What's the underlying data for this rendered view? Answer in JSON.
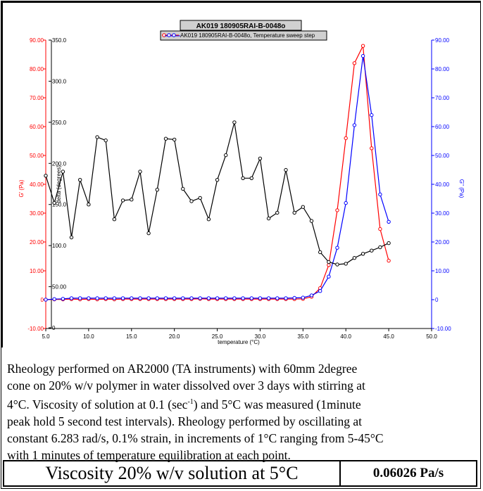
{
  "chart_data": {
    "type": "line",
    "title": "AK019 180905RAI-B-0048o",
    "legend_label": "AK019 180905RAI-B-0048o, Temperature sweep step",
    "legend_position": "top-center",
    "xlabel": "temperature (°C)",
    "y_left_label": "G' (Pa)",
    "y_right_label": "G'' (Pa)",
    "y_delta_label": "delta (degrees)",
    "xlim": [
      5.0,
      50.0
    ],
    "ylim": [
      -10.0,
      90.0
    ],
    "delta_lim": [
      0,
      350.0
    ],
    "x_ticks": [
      "5.0",
      "10.0",
      "15.0",
      "20.0",
      "25.0",
      "30.0",
      "35.0",
      "40.0",
      "45.0",
      "50.0"
    ],
    "y_ticks": [
      "-10.00",
      "0",
      "10.00",
      "20.00",
      "30.00",
      "40.00",
      "50.00",
      "60.00",
      "70.00",
      "80.00",
      "90.00"
    ],
    "delta_ticks": [
      "0",
      "50.00",
      "100.0",
      "150.0",
      "200.0",
      "250.0",
      "300.0",
      "350.0"
    ],
    "grid": false,
    "colors": {
      "g_prime": "#ff0000",
      "g_double_prime": "#0000ff",
      "delta": "#000000"
    },
    "x": [
      5,
      6,
      7,
      8,
      9,
      10,
      11,
      12,
      13,
      14,
      15,
      16,
      17,
      18,
      19,
      20,
      21,
      22,
      23,
      24,
      25,
      26,
      27,
      28,
      29,
      30,
      31,
      32,
      33,
      34,
      35,
      36,
      37,
      38,
      39,
      40,
      41,
      42,
      43,
      44,
      45
    ],
    "series": [
      {
        "key": "g_prime",
        "axis": "left",
        "values": [
          0.0,
          0.1,
          0.1,
          0.2,
          0.1,
          0.2,
          0.1,
          0.2,
          0.1,
          0.2,
          0.2,
          0.2,
          0.2,
          0.2,
          0.2,
          0.2,
          0.2,
          0.2,
          0.3,
          0.2,
          0.2,
          0.2,
          0.2,
          0.2,
          0.2,
          0.2,
          0.2,
          0.2,
          0.2,
          0.2,
          0.3,
          1.0,
          4.0,
          12.0,
          31.0,
          56.0,
          82.0,
          88.0,
          52.5,
          24.5,
          13.5
        ]
      },
      {
        "key": "g_double_prime",
        "axis": "left",
        "values": [
          0.0,
          0.2,
          0.3,
          0.5,
          0.5,
          0.5,
          0.5,
          0.5,
          0.5,
          0.5,
          0.5,
          0.5,
          0.5,
          0.5,
          0.5,
          0.5,
          0.5,
          0.5,
          0.5,
          0.5,
          0.5,
          0.5,
          0.5,
          0.5,
          0.5,
          0.5,
          0.5,
          0.5,
          0.5,
          0.6,
          0.7,
          1.5,
          3.0,
          8.0,
          18.0,
          33.5,
          60.5,
          84.5,
          64.0,
          36.5,
          27.0
        ]
      },
      {
        "key": "delta",
        "axis": "delta",
        "values": [
          185,
          152,
          190,
          110,
          180,
          150,
          232,
          228,
          132,
          155,
          156,
          190,
          115,
          168,
          230,
          229,
          169,
          154,
          158,
          132,
          180,
          210,
          250,
          182,
          182,
          206,
          133,
          140,
          192,
          140,
          147,
          130,
          92,
          80,
          77,
          78,
          85,
          90,
          94,
          98,
          103
        ]
      }
    ]
  },
  "description": {
    "line1": "Rheology  performed on AR2000 (TA instruments) with 60mm 2degree",
    "line2": "cone on 20% w/v polymer in water dissolved over 3 days with stirring at",
    "line3_a": "4°C. Viscosity of solution at 0.1 (sec",
    "line3_sup": "-1",
    "line3_b": ") and 5°C was measured (1minute",
    "line4": "peak hold 5 second test intervals). Rheology performed by oscillating at",
    "line5": "constant 6.283 rad/s, 0.1% strain, in increments of 1°C ranging from 5-45°C",
    "line6": "with 1 minutes of temperature equilibration at each point."
  },
  "viscosity": {
    "label": "Viscosity 20% w/v solution at 5°C",
    "value": "0.06026 Pa/s"
  }
}
